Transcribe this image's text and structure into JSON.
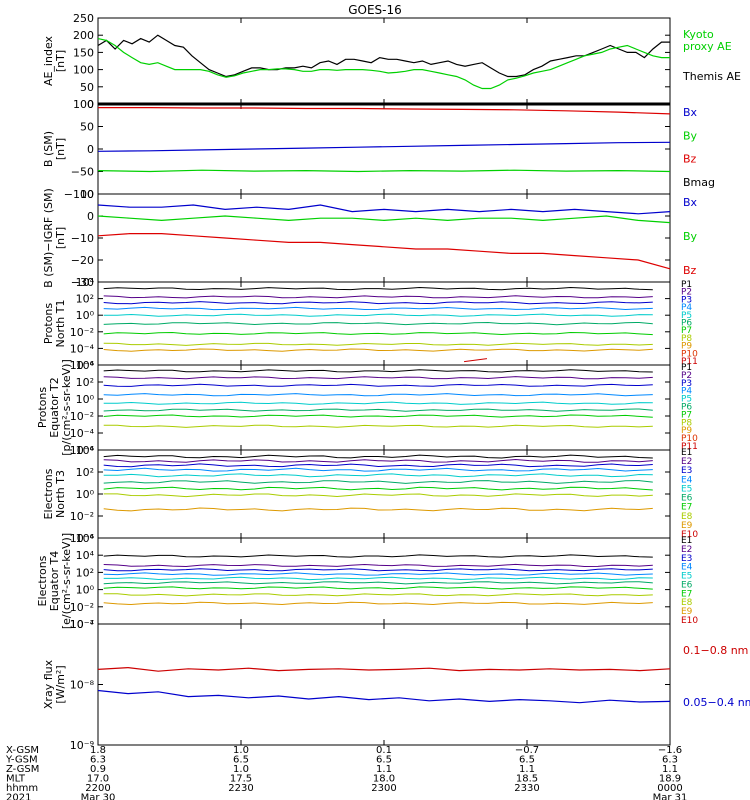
{
  "title": "GOES-16",
  "chart_data": [
    {
      "type": "line",
      "ylabel": [
        "AE_index",
        "[nT]"
      ],
      "ylim": [
        0,
        250
      ],
      "yscale": "linear",
      "yticks": [
        0,
        50,
        100,
        150,
        200,
        250
      ],
      "yticklabels": [
        "0",
        "50",
        "100",
        "150",
        "200",
        "250"
      ],
      "legend": [
        {
          "text": "Kyoto",
          "color": "#00d000"
        },
        {
          "text": "proxy AE",
          "color": "#00d000"
        },
        {
          "text": "Themis AE",
          "color": "#000000"
        }
      ],
      "series": [
        {
          "name": "Themis AE",
          "color": "#000000",
          "values": [
            170,
            185,
            160,
            185,
            175,
            190,
            180,
            200,
            185,
            170,
            165,
            140,
            120,
            100,
            90,
            80,
            85,
            95,
            105,
            105,
            100,
            100,
            105,
            105,
            110,
            105,
            120,
            125,
            115,
            130,
            130,
            125,
            120,
            135,
            130,
            130,
            125,
            120,
            125,
            115,
            120,
            125,
            115,
            110,
            115,
            120,
            105,
            90,
            80,
            80,
            85,
            100,
            110,
            125,
            130,
            135,
            140,
            140,
            150,
            160,
            170,
            160,
            150,
            150,
            135,
            160,
            180,
            180
          ]
        },
        {
          "name": "Kyoto proxy AE",
          "color": "#00d000",
          "values": [
            190,
            185,
            170,
            150,
            135,
            120,
            115,
            120,
            110,
            100,
            100,
            100,
            100,
            95,
            85,
            78,
            82,
            90,
            95,
            100,
            100,
            102,
            102,
            100,
            95,
            95,
            100,
            100,
            98,
            100,
            100,
            100,
            98,
            95,
            90,
            92,
            95,
            100,
            100,
            95,
            90,
            85,
            80,
            70,
            55,
            45,
            45,
            55,
            70,
            75,
            82,
            90,
            95,
            100,
            110,
            120,
            130,
            140,
            145,
            150,
            160,
            165,
            170,
            160,
            150,
            140,
            135,
            135
          ]
        }
      ]
    },
    {
      "type": "line",
      "ylabel": [
        "B (SM)",
        "[nT]"
      ],
      "ylim": [
        -100,
        100
      ],
      "yscale": "linear",
      "yticks": [
        -100,
        -50,
        0,
        50,
        100
      ],
      "yticklabels": [
        "−100",
        "−50",
        "0",
        "50",
        "100"
      ],
      "legend": [
        {
          "text": "Bx",
          "color": "#0000cc"
        },
        {
          "text": "By",
          "color": "#00d000"
        },
        {
          "text": "Bz",
          "color": "#dd0000"
        },
        {
          "text": "Bmag",
          "color": "#000000"
        }
      ],
      "series": [
        {
          "name": "Bmag",
          "color": "#000000",
          "values": [
            100,
            100,
            100,
            100,
            100,
            100,
            100,
            100,
            100,
            100,
            100,
            100
          ]
        },
        {
          "name": "Bz",
          "color": "#dd0000",
          "values": [
            92,
            92,
            91,
            91,
            90,
            90,
            89,
            88,
            87,
            85,
            82,
            78
          ]
        },
        {
          "name": "Bx",
          "color": "#0000cc",
          "values": [
            -5,
            -4,
            -2,
            0,
            2,
            4,
            6,
            8,
            10,
            12,
            14,
            15
          ]
        },
        {
          "name": "By",
          "color": "#00d000",
          "values": [
            -48,
            -50,
            -47,
            -49,
            -48,
            -50,
            -48,
            -49,
            -47,
            -49,
            -48,
            -50
          ]
        }
      ]
    },
    {
      "type": "line",
      "ylabel": [
        "B (SM)−IGRF (SM)",
        "[nT]"
      ],
      "ylim": [
        -30,
        10
      ],
      "yscale": "linear",
      "yticks": [
        -30,
        -20,
        -10,
        0,
        10
      ],
      "yticklabels": [
        "−30",
        "−20",
        "−10",
        "0",
        "10"
      ],
      "legend": [
        {
          "text": "Bx",
          "color": "#0000cc"
        },
        {
          "text": "By",
          "color": "#00d000"
        },
        {
          "text": "Bz",
          "color": "#dd0000"
        }
      ],
      "series": [
        {
          "name": "Bx",
          "color": "#0000cc",
          "values": [
            5,
            4,
            4,
            5,
            3,
            4,
            3,
            5,
            2,
            3,
            2,
            3,
            2,
            3,
            2,
            3,
            2,
            1,
            2
          ]
        },
        {
          "name": "By",
          "color": "#00d000",
          "values": [
            0,
            -1,
            -2,
            -1,
            0,
            -1,
            -2,
            -1,
            -1,
            -2,
            -1,
            -2,
            -1,
            -1,
            -2,
            -1,
            0,
            -2,
            -3
          ]
        },
        {
          "name": "Bz",
          "color": "#dd0000",
          "values": [
            -9,
            -8,
            -8,
            -9,
            -10,
            -11,
            -12,
            -12,
            -13,
            -14,
            -15,
            -15,
            -16,
            -17,
            -17,
            -18,
            -19,
            -20,
            -24
          ]
        }
      ]
    },
    {
      "type": "line",
      "ylabel": [
        "Protons",
        "North T1"
      ],
      "ylim": [
        -6,
        4
      ],
      "yscale": "log",
      "yticks": [
        -6,
        -4,
        -2,
        0,
        2,
        4
      ],
      "yticklabels": [
        "10⁻⁶",
        "10⁻⁴",
        "10⁻²",
        "10⁰",
        "10²",
        "10⁴"
      ],
      "legend_labels": [
        "P1",
        "P2",
        "P3",
        "P4",
        "P5",
        "P6",
        "P7",
        "P8",
        "P9",
        "P10",
        "P11"
      ],
      "legend_colors": [
        "#000000",
        "#550088",
        "#0000cc",
        "#0088ff",
        "#00cccc",
        "#00aa66",
        "#00cc00",
        "#aacc00",
        "#dd9900",
        "#dd3300",
        "#cc0000"
      ],
      "series_levels": [
        3.2,
        2.2,
        1.5,
        0.8,
        0.0,
        -1.0,
        -2.2,
        -3.5,
        -4.2
      ],
      "gap": {
        "level": -5.6,
        "x": [
          0.64,
          0.68
        ]
      }
    },
    {
      "type": "line",
      "ylabel": [
        "Protons",
        "Equator T2",
        "[p/(cm²-s-sr-keV)]"
      ],
      "ylim": [
        -6,
        4
      ],
      "yscale": "log",
      "yticks": [
        -6,
        -4,
        -2,
        0,
        2,
        4
      ],
      "yticklabels": [
        "10⁻⁶",
        "10⁻⁴",
        "10⁻²",
        "10⁰",
        "10²",
        "10⁴"
      ],
      "legend_labels": [
        "P1",
        "P2",
        "P3",
        "P4",
        "P5",
        "P6",
        "P7",
        "P8",
        "P9",
        "P10",
        "P11"
      ],
      "legend_colors": [
        "#000000",
        "#550088",
        "#0000cc",
        "#0088ff",
        "#00cccc",
        "#00aa66",
        "#00cc00",
        "#aacc00",
        "#dd9900",
        "#dd3300",
        "#cc0000"
      ],
      "series_levels": [
        3.3,
        2.5,
        1.6,
        0.5,
        -0.5,
        -1.3,
        -2.0,
        -3.2
      ]
    },
    {
      "type": "line",
      "ylabel": [
        "Electrons",
        "North T3"
      ],
      "ylim": [
        -4,
        4
      ],
      "yscale": "log",
      "yticks": [
        -4,
        -2,
        0,
        2,
        4
      ],
      "yticklabels": [
        "10⁻⁴",
        "10⁻²",
        "10⁰",
        "10²",
        "10⁴"
      ],
      "legend_labels": [
        "E1",
        "E2",
        "E3",
        "E4",
        "E5",
        "E6",
        "E7",
        "E8",
        "E9",
        "E10"
      ],
      "legend_colors": [
        "#000000",
        "#550088",
        "#0000cc",
        "#0088ff",
        "#00cccc",
        "#00aa66",
        "#00cc00",
        "#aacc00",
        "#dd9900",
        "#cc0000"
      ],
      "series_levels": [
        3.4,
        3.0,
        2.6,
        2.2,
        1.7,
        1.1,
        0.5,
        -0.1,
        -1.4
      ]
    },
    {
      "type": "line",
      "ylabel": [
        "Electrons",
        "Equator T4",
        "[e/(cm²-s-sr-keV)]"
      ],
      "ylim": [
        -4,
        6
      ],
      "yscale": "log",
      "yticks": [
        -4,
        -2,
        0,
        2,
        4,
        6
      ],
      "yticklabels": [
        "10⁻⁴",
        "10⁻²",
        "10⁰",
        "10²",
        "10⁴",
        "10⁶"
      ],
      "legend_labels": [
        "E1",
        "E2",
        "E3",
        "E4",
        "E5",
        "E6",
        "E7",
        "E8",
        "E9",
        "E10"
      ],
      "legend_colors": [
        "#000000",
        "#550088",
        "#0000cc",
        "#0088ff",
        "#00cccc",
        "#00aa66",
        "#00cc00",
        "#aacc00",
        "#dd9900",
        "#cc0000"
      ],
      "series_levels": [
        3.9,
        2.8,
        2.3,
        1.8,
        1.3,
        0.8,
        0.2,
        -0.6,
        -1.6
      ]
    },
    {
      "type": "line",
      "ylabel": [
        "Xray flux",
        "[W/m²]"
      ],
      "ylim": [
        -9,
        -7
      ],
      "yscale": "log",
      "yticks": [
        -9,
        -8,
        -7
      ],
      "yticklabels": [
        "10⁻⁹",
        "10⁻⁸",
        "10⁻⁷"
      ],
      "legend": [
        {
          "text": "0.1−0.8 nm",
          "color": "#cc0000"
        },
        {
          "text": "0.05−0.4 nm",
          "color": "#0000cc"
        }
      ],
      "series": [
        {
          "name": "0.1−0.8 nm",
          "color": "#cc0000",
          "values": [
            -7.75,
            -7.72,
            -7.78,
            -7.74,
            -7.76,
            -7.73,
            -7.77,
            -7.75,
            -7.74,
            -7.76,
            -7.75,
            -7.73,
            -7.77,
            -7.75,
            -7.76,
            -7.74,
            -7.76,
            -7.75,
            -7.77,
            -7.74
          ]
        },
        {
          "name": "0.05−0.4 nm",
          "color": "#0000cc",
          "values": [
            -8.1,
            -8.15,
            -8.12,
            -8.2,
            -8.18,
            -8.22,
            -8.19,
            -8.24,
            -8.2,
            -8.25,
            -8.22,
            -8.27,
            -8.24,
            -8.28,
            -8.25,
            -8.27,
            -8.3,
            -8.26,
            -8.29,
            -8.28
          ]
        }
      ]
    }
  ],
  "xaxis": {
    "ticks": [
      "2200",
      "2230",
      "2300",
      "2330",
      "0000"
    ],
    "rows": [
      {
        "label": "X-GSM",
        "values": [
          "1.8",
          "1.0",
          "0.1",
          "−0.7",
          "−1.6"
        ]
      },
      {
        "label": "Y-GSM",
        "values": [
          "6.3",
          "6.5",
          "6.5",
          "6.5",
          "6.3"
        ]
      },
      {
        "label": "Z-GSM",
        "values": [
          "0.9",
          "1.0",
          "1.1",
          "1.1",
          "1.1"
        ]
      },
      {
        "label": "MLT",
        "values": [
          "17.0",
          "17.5",
          "18.0",
          "18.5",
          "18.9"
        ]
      },
      {
        "label": "hhmm",
        "values": [
          "2200",
          "2230",
          "2300",
          "2330",
          "0000"
        ]
      },
      {
        "label": "2021",
        "values": [
          "Mar 30",
          "",
          "",
          "",
          "Mar 31"
        ]
      }
    ]
  }
}
